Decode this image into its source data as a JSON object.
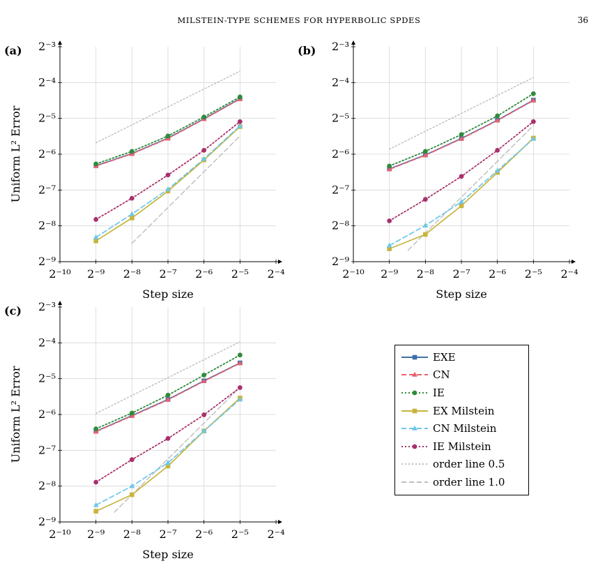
{
  "header": {
    "title": "MILSTEIN-TYPE SCHEMES FOR HYPERBOLIC SPDES",
    "page_number": "36"
  },
  "colors": {
    "EXE": "#3f6fa8",
    "CN": "#e8606e",
    "IE": "#2e8b3a",
    "EX Milstein": "#c8b43c",
    "CN Milstein": "#6ec6e8",
    "IE Milstein": "#a8306c",
    "order line 0.5": "#bdbdbd",
    "order line 1.0": "#bdbdbd",
    "grid": "#d6d6d6"
  },
  "legend": {
    "placement": "bottom-right panel",
    "entries": [
      {
        "label": "EXE",
        "icon": "square-marker",
        "dash": "solid"
      },
      {
        "label": "CN",
        "icon": "triangle-marker",
        "dash": "dashed"
      },
      {
        "label": "IE",
        "icon": "circle-marker",
        "dash": "dotted"
      },
      {
        "label": "EX Milstein",
        "icon": "square-marker",
        "dash": "solid"
      },
      {
        "label": "CN Milstein",
        "icon": "triangle-marker",
        "dash": "dashed"
      },
      {
        "label": "IE Milstein",
        "icon": "circle-marker",
        "dash": "dotted"
      },
      {
        "label": "order line 0.5",
        "icon": "none",
        "dash": "dotted"
      },
      {
        "label": "order line 1.0",
        "icon": "none",
        "dash": "dashed"
      }
    ]
  },
  "chart_data": [
    {
      "panel": "(a)",
      "type": "line",
      "xlabel": "Step size",
      "ylabel": "Uniform L² Error",
      "x_scale": "log2",
      "y_scale": "log2",
      "xlim_exp": [
        -10,
        -4
      ],
      "ylim_exp": [
        -9,
        -3
      ],
      "grid": true,
      "x_ticks": [
        "2⁻¹⁰",
        "2⁻⁹",
        "2⁻⁸",
        "2⁻⁷",
        "2⁻⁶",
        "2⁻⁵",
        "2⁻⁴"
      ],
      "y_ticks": [
        "2⁻⁹",
        "2⁻⁸",
        "2⁻⁷",
        "2⁻⁶",
        "2⁻⁵",
        "2⁻⁴",
        "2⁻³"
      ],
      "x_exp": [
        -9,
        -8,
        -7,
        -6,
        -5
      ],
      "series": [
        {
          "name": "EXE",
          "y_exp": [
            -6.32,
            -5.98,
            -5.55,
            -5.01,
            -4.45
          ]
        },
        {
          "name": "CN",
          "y_exp": [
            -6.33,
            -5.99,
            -5.56,
            -5.02,
            -4.46
          ]
        },
        {
          "name": "IE",
          "y_exp": [
            -6.27,
            -5.92,
            -5.49,
            -4.96,
            -4.4
          ]
        },
        {
          "name": "EX Milstein",
          "y_exp": [
            -8.42,
            -7.78,
            -7.03,
            -6.16,
            -5.23
          ]
        },
        {
          "name": "CN Milstein",
          "y_exp": [
            -8.32,
            -7.67,
            -6.98,
            -6.13,
            -5.21
          ]
        },
        {
          "name": "IE Milstein",
          "y_exp": [
            -7.82,
            -7.23,
            -6.58,
            -5.89,
            -5.09
          ]
        },
        {
          "name": "order line 0.5",
          "x_exp": [
            -9,
            -5
          ],
          "y_exp": [
            -5.68,
            -3.68
          ]
        },
        {
          "name": "order line 1.0",
          "x_exp": [
            -8,
            -5
          ],
          "y_exp": [
            -8.49,
            -5.49
          ]
        }
      ]
    },
    {
      "panel": "(b)",
      "type": "line",
      "xlabel": "Step size",
      "ylabel": "",
      "x_scale": "log2",
      "y_scale": "log2",
      "xlim_exp": [
        -10,
        -4
      ],
      "ylim_exp": [
        -9,
        -3
      ],
      "grid": true,
      "x_ticks": [
        "2⁻¹⁰",
        "2⁻⁹",
        "2⁻⁸",
        "2⁻⁷",
        "2⁻⁶",
        "2⁻⁵",
        "2⁻⁴"
      ],
      "y_ticks": [
        "2⁻⁹",
        "2⁻⁸",
        "2⁻⁷",
        "2⁻⁶",
        "2⁻⁵",
        "2⁻⁴",
        "2⁻³"
      ],
      "x_exp": [
        -9,
        -8,
        -7,
        -6,
        -5
      ],
      "series": [
        {
          "name": "EXE",
          "y_exp": [
            -6.41,
            -6.02,
            -5.56,
            -5.05,
            -4.49
          ]
        },
        {
          "name": "CN",
          "y_exp": [
            -6.42,
            -6.03,
            -5.57,
            -5.06,
            -4.5
          ]
        },
        {
          "name": "IE",
          "y_exp": [
            -6.33,
            -5.92,
            -5.45,
            -4.93,
            -4.31
          ]
        },
        {
          "name": "EX Milstein",
          "y_exp": [
            -8.64,
            -8.24,
            -7.44,
            -6.51,
            -5.55
          ]
        },
        {
          "name": "CN Milstein",
          "y_exp": [
            -8.55,
            -7.99,
            -7.33,
            -6.46,
            -5.57
          ]
        },
        {
          "name": "IE Milstein",
          "y_exp": [
            -7.86,
            -7.26,
            -6.62,
            -5.89,
            -5.09
          ]
        },
        {
          "name": "order line 0.5",
          "x_exp": [
            -9,
            -5
          ],
          "y_exp": [
            -5.86,
            -3.86
          ]
        },
        {
          "name": "order line 1.0",
          "x_exp": [
            -8.48,
            -5
          ],
          "y_exp": [
            -8.68,
            -5.2
          ]
        }
      ]
    },
    {
      "panel": "(c)",
      "type": "line",
      "xlabel": "Step size",
      "ylabel": "Uniform L² Error",
      "x_scale": "log2",
      "y_scale": "log2",
      "xlim_exp": [
        -10,
        -4
      ],
      "ylim_exp": [
        -9,
        -3
      ],
      "grid": true,
      "x_ticks": [
        "2⁻¹⁰",
        "2⁻⁹",
        "2⁻⁸",
        "2⁻⁷",
        "2⁻⁶",
        "2⁻⁵",
        "2⁻⁴"
      ],
      "y_ticks": [
        "2⁻⁹",
        "2⁻⁸",
        "2⁻⁷",
        "2⁻⁶",
        "2⁻⁵",
        "2⁻⁴",
        "2⁻³"
      ],
      "x_exp": [
        -9,
        -8,
        -7,
        -6,
        -5
      ],
      "series": [
        {
          "name": "EXE",
          "y_exp": [
            -6.47,
            -6.03,
            -5.58,
            -5.06,
            -4.56
          ]
        },
        {
          "name": "CN",
          "y_exp": [
            -6.48,
            -6.04,
            -5.59,
            -5.07,
            -4.57
          ]
        },
        {
          "name": "IE",
          "y_exp": [
            -6.4,
            -5.96,
            -5.46,
            -4.9,
            -4.34
          ]
        },
        {
          "name": "EX Milstein",
          "y_exp": [
            -8.7,
            -8.24,
            -7.44,
            -6.46,
            -5.54
          ]
        },
        {
          "name": "CN Milstein",
          "y_exp": [
            -8.53,
            -8.0,
            -7.35,
            -6.46,
            -5.58
          ]
        },
        {
          "name": "IE Milstein",
          "y_exp": [
            -7.89,
            -7.26,
            -6.67,
            -6.01,
            -5.25
          ]
        },
        {
          "name": "order line 0.5",
          "x_exp": [
            -9,
            -5
          ],
          "y_exp": [
            -5.97,
            -3.97
          ]
        },
        {
          "name": "order line 1.0",
          "x_exp": [
            -8.49,
            -5
          ],
          "y_exp": [
            -8.73,
            -5.24
          ]
        }
      ]
    }
  ]
}
